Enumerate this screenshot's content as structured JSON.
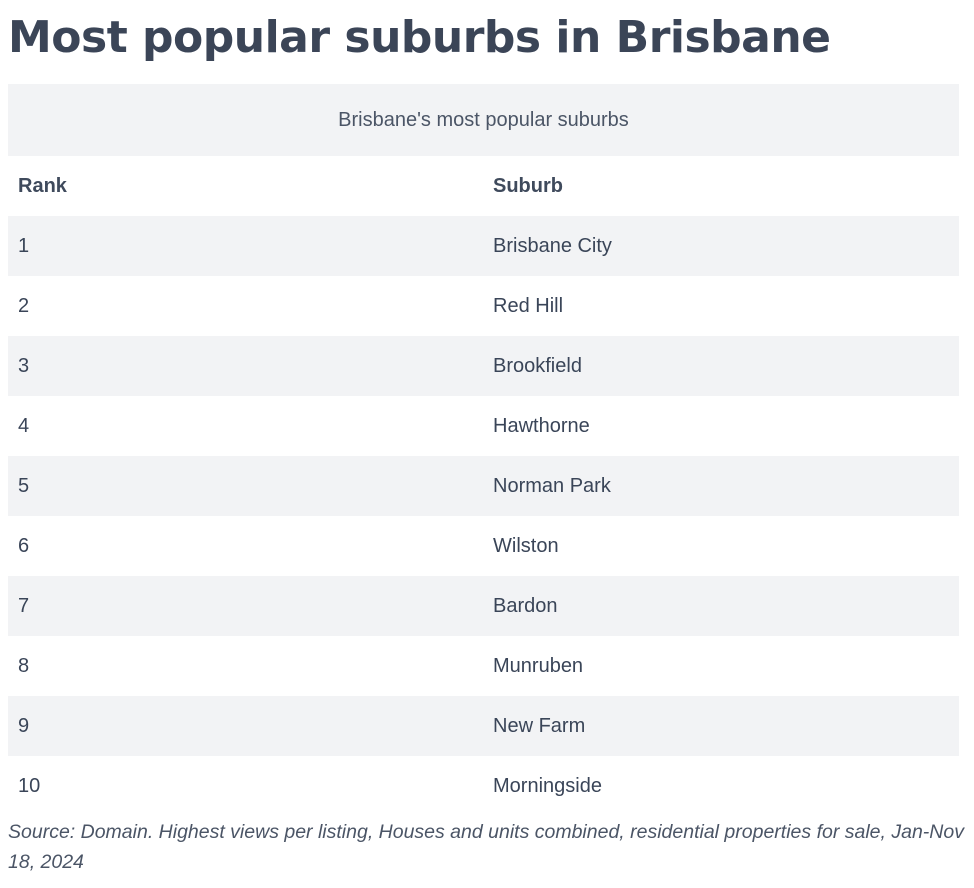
{
  "page": {
    "title": "Most popular suburbs in Brisbane",
    "source": "Source: Domain. Highest views per listing, Houses and units combined, residential properties for sale, Jan-Nov 18, 2024"
  },
  "table": {
    "caption": "Brisbane's most popular suburbs",
    "headers": {
      "rank": "Rank",
      "suburb": "Suburb"
    },
    "rows": [
      {
        "rank": "1",
        "suburb": "Brisbane City"
      },
      {
        "rank": "2",
        "suburb": "Red Hill"
      },
      {
        "rank": "3",
        "suburb": "Brookfield"
      },
      {
        "rank": "4",
        "suburb": "Hawthorne"
      },
      {
        "rank": "5",
        "suburb": "Norman Park"
      },
      {
        "rank": "6",
        "suburb": "Wilston"
      },
      {
        "rank": "7",
        "suburb": "Bardon"
      },
      {
        "rank": "8",
        "suburb": "Munruben"
      },
      {
        "rank": "9",
        "suburb": "New Farm"
      },
      {
        "rank": "10",
        "suburb": "Morningside"
      }
    ]
  },
  "colors": {
    "text": "#3a4558",
    "stripe": "#f2f3f5",
    "background": "#ffffff"
  }
}
